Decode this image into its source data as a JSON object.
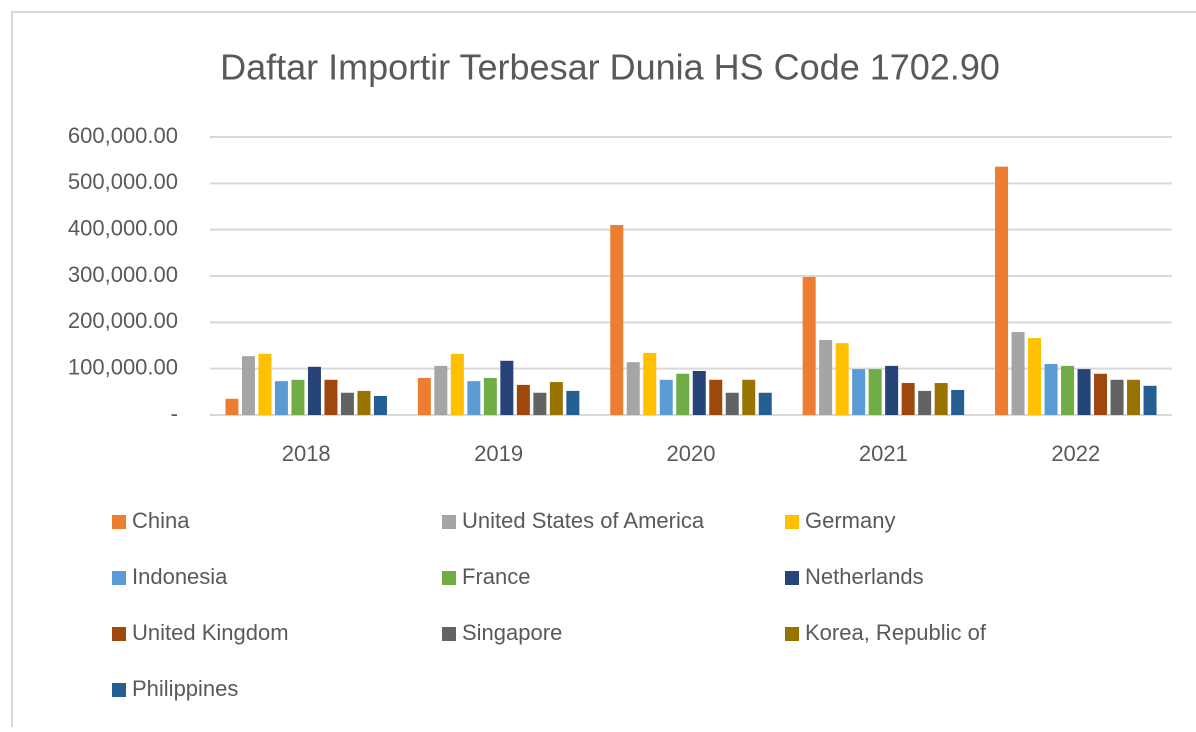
{
  "chart_data": {
    "type": "bar",
    "title": "Daftar Importir Terbesar Dunia HS Code 1702.90",
    "categories": [
      "2018",
      "2019",
      "2020",
      "2021",
      "2022"
    ],
    "series": [
      {
        "name": "China",
        "color": "#ed7d31",
        "values": [
          35000,
          80000,
          410000,
          298000,
          536000
        ]
      },
      {
        "name": "United States of America",
        "color": "#a5a5a5",
        "values": [
          127000,
          106000,
          114000,
          162000,
          179000
        ]
      },
      {
        "name": "Germany",
        "color": "#ffc000",
        "values": [
          132000,
          132000,
          134000,
          155000,
          166000
        ]
      },
      {
        "name": "Indonesia",
        "color": "#5b9bd5",
        "values": [
          73000,
          73000,
          76000,
          99000,
          110000
        ]
      },
      {
        "name": "France",
        "color": "#70ad47",
        "values": [
          76000,
          80000,
          89000,
          99000,
          106000
        ]
      },
      {
        "name": "Netherlands",
        "color": "#264478",
        "values": [
          104000,
          117000,
          95000,
          106000,
          99000
        ]
      },
      {
        "name": "United Kingdom",
        "color": "#9e480e",
        "values": [
          76000,
          65000,
          76000,
          69000,
          89000
        ]
      },
      {
        "name": "Singapore",
        "color": "#636363",
        "values": [
          48000,
          48000,
          48000,
          52000,
          76000
        ]
      },
      {
        "name": "Korea, Republic of",
        "color": "#997300",
        "values": [
          52000,
          71000,
          76000,
          69000,
          76000
        ]
      },
      {
        "name": "Philippines",
        "color": "#255e91",
        "values": [
          41000,
          52000,
          48000,
          54000,
          63000
        ]
      }
    ],
    "ylim": [
      0,
      600000
    ],
    "yticks": [
      {
        "value": 0,
        "label": "-"
      },
      {
        "value": 100000,
        "label": "100,000.00"
      },
      {
        "value": 200000,
        "label": "200,000.00"
      },
      {
        "value": 300000,
        "label": "300,000.00"
      },
      {
        "value": 400000,
        "label": "400,000.00"
      },
      {
        "value": 500000,
        "label": "500,000.00"
      },
      {
        "value": 600000,
        "label": "600,000.00"
      }
    ],
    "grid": true,
    "legend": "bottom"
  }
}
